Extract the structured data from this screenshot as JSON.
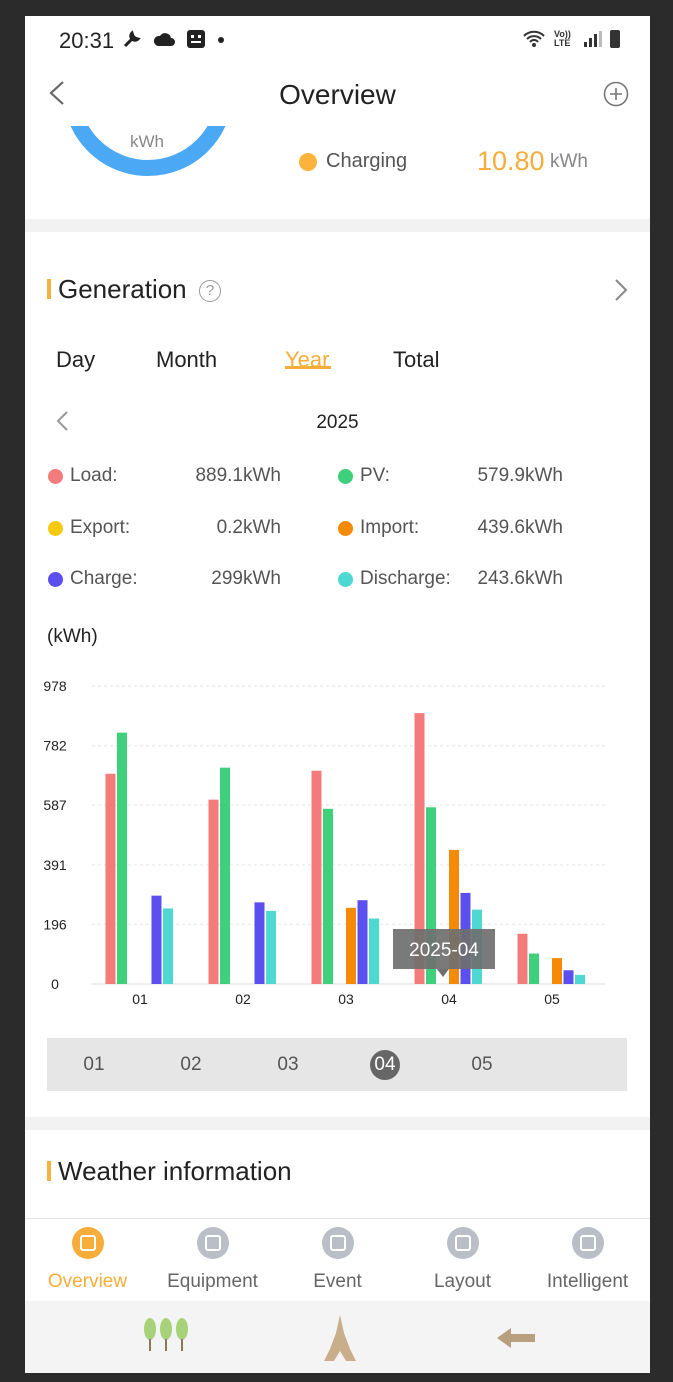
{
  "status_bar": {
    "time": "20:31",
    "left_icons": [
      "wrench-icon",
      "cloud-icon",
      "face-icon",
      "dot-icon"
    ],
    "right_icons": [
      "wifi-icon",
      "volte-icon",
      "signal-icon",
      "battery-icon"
    ],
    "volte_text": "Vo)) LTE"
  },
  "header": {
    "title": "Overview"
  },
  "top_card": {
    "gauge_unit": "kWh",
    "gauge_color": "#4aa8f5",
    "charging_label": "Charging",
    "charging_value": "10.80",
    "charging_unit": "kWh",
    "charging_color": "#fbb33c"
  },
  "generation": {
    "title": "Generation",
    "help_symbol": "?",
    "tabs": [
      "Day",
      "Month",
      "Year",
      "Total"
    ],
    "active_tab": "Year",
    "year": "2025",
    "stats": [
      {
        "label": "Load:",
        "value": "889.1kWh",
        "color": "#f47b7b"
      },
      {
        "label": "PV:",
        "value": "579.9kWh",
        "color": "#3fd07b"
      },
      {
        "label": "Export:",
        "value": "0.2kWh",
        "color": "#f6c90e"
      },
      {
        "label": "Import:",
        "value": "439.6kWh",
        "color": "#f58a07"
      },
      {
        "label": "Charge:",
        "value": "299kWh",
        "color": "#5b4ff0"
      },
      {
        "label": "Discharge:",
        "value": "243.6kWh",
        "color": "#4dd8d2"
      }
    ],
    "unit_label": "(kWh)",
    "months": [
      "01",
      "02",
      "03",
      "04",
      "05"
    ],
    "active_month": "04"
  },
  "chart_data": {
    "type": "bar",
    "categories": [
      "01",
      "02",
      "03",
      "04",
      "05"
    ],
    "y_ticks": [
      "978",
      "782",
      "587",
      "391",
      "196",
      "0"
    ],
    "ylim": [
      0,
      978
    ],
    "grid": true,
    "series": [
      {
        "name": "Load",
        "color": "#f47b7b",
        "values": [
          690,
          605,
          700,
          889,
          165
        ]
      },
      {
        "name": "PV",
        "color": "#3fd07b",
        "values": [
          825,
          710,
          575,
          580,
          100
        ]
      },
      {
        "name": "Export",
        "color": "#f6c90e",
        "values": [
          0,
          0,
          0,
          0.2,
          0
        ]
      },
      {
        "name": "Import",
        "color": "#f58a07",
        "values": [
          0,
          0,
          250,
          440,
          85
        ]
      },
      {
        "name": "Charge",
        "color": "#5b4ff0",
        "values": [
          290,
          268,
          275,
          299,
          45
        ]
      },
      {
        "name": "Discharge",
        "color": "#4dd8d2",
        "values": [
          248,
          240,
          215,
          244,
          30
        ]
      }
    ],
    "tooltip": "2025-04"
  },
  "weather": {
    "title": "Weather information"
  },
  "bottom_nav": {
    "items": [
      {
        "label": "Overview",
        "icon": "monitor-icon",
        "active": true
      },
      {
        "label": "Equipment",
        "icon": "equipment-icon",
        "active": false
      },
      {
        "label": "Event",
        "icon": "document-icon",
        "active": false
      },
      {
        "label": "Layout",
        "icon": "network-icon",
        "active": false
      },
      {
        "label": "Intelligent",
        "icon": "storage-icon",
        "active": false
      }
    ]
  },
  "system_nav": {
    "icons": [
      "trees-icon",
      "tower-icon",
      "back-arrow-icon"
    ]
  }
}
